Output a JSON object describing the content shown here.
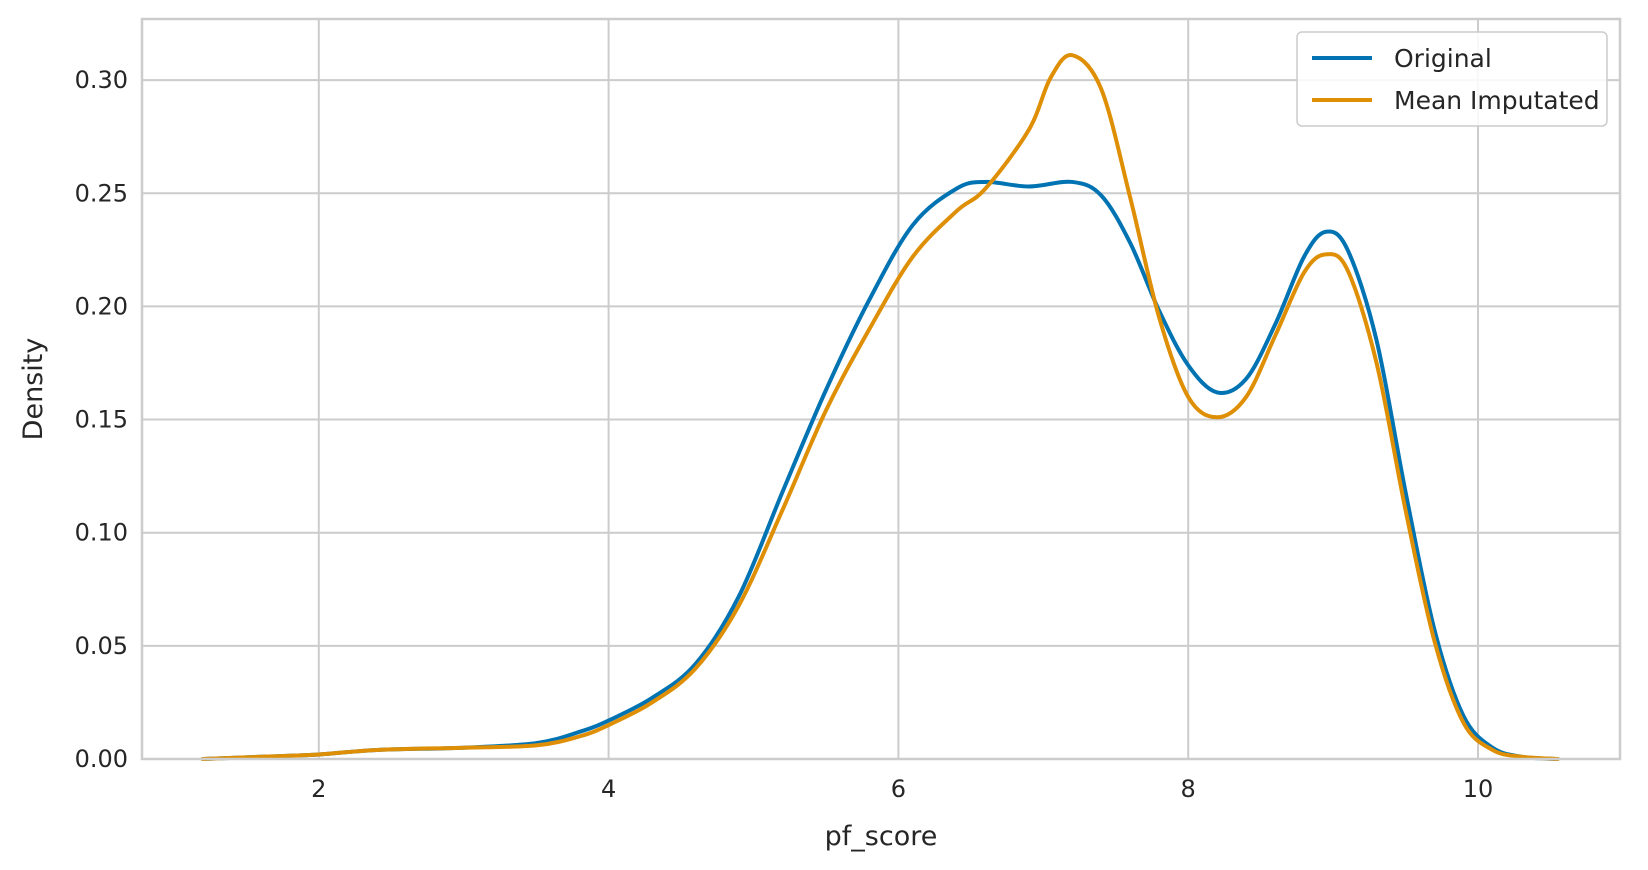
{
  "chart_data": {
    "type": "line",
    "title": "",
    "xlabel": "pf_score",
    "ylabel": "Density",
    "xlim": [
      0.78,
      10.98
    ],
    "ylim": [
      0,
      0.327
    ],
    "x_ticks": [
      2,
      4,
      6,
      8,
      10
    ],
    "x_tick_labels": [
      "2",
      "4",
      "6",
      "8",
      "10"
    ],
    "y_ticks": [
      0,
      0.05,
      0.1,
      0.15,
      0.2,
      0.25,
      0.3
    ],
    "y_tick_labels": [
      "0.00",
      "0.05",
      "0.10",
      "0.15",
      "0.20",
      "0.25",
      "0.30"
    ],
    "grid": true,
    "legend_position": "top-right",
    "series": [
      {
        "name": "Original",
        "color": "#0173b2",
        "x": [
          1.2,
          1.6,
          2.0,
          2.4,
          3.0,
          3.5,
          3.8,
          4.0,
          4.3,
          4.6,
          4.9,
          5.2,
          5.5,
          5.8,
          6.1,
          6.4,
          6.6,
          6.9,
          7.2,
          7.4,
          7.6,
          7.8,
          8.0,
          8.2,
          8.4,
          8.6,
          8.8,
          8.95,
          9.1,
          9.3,
          9.5,
          9.7,
          9.9,
          10.1,
          10.3,
          10.55
        ],
        "values": [
          0.0,
          0.001,
          0.002,
          0.004,
          0.005,
          0.007,
          0.012,
          0.017,
          0.027,
          0.042,
          0.072,
          0.118,
          0.163,
          0.203,
          0.236,
          0.252,
          0.255,
          0.253,
          0.255,
          0.249,
          0.228,
          0.198,
          0.174,
          0.162,
          0.168,
          0.192,
          0.222,
          0.233,
          0.225,
          0.185,
          0.118,
          0.057,
          0.019,
          0.005,
          0.001,
          0.0
        ]
      },
      {
        "name": "Mean Imputated",
        "color": "#de8f05",
        "x": [
          1.2,
          1.6,
          2.0,
          2.4,
          3.0,
          3.5,
          3.8,
          4.0,
          4.3,
          4.6,
          4.9,
          5.2,
          5.5,
          5.8,
          6.1,
          6.4,
          6.6,
          6.9,
          7.05,
          7.2,
          7.4,
          7.6,
          7.8,
          8.0,
          8.2,
          8.4,
          8.6,
          8.8,
          8.95,
          9.1,
          9.3,
          9.5,
          9.7,
          9.9,
          10.1,
          10.3,
          10.55
        ],
        "values": [
          0.0,
          0.001,
          0.002,
          0.004,
          0.005,
          0.006,
          0.01,
          0.015,
          0.025,
          0.04,
          0.068,
          0.11,
          0.154,
          0.19,
          0.222,
          0.242,
          0.252,
          0.278,
          0.301,
          0.311,
          0.296,
          0.248,
          0.195,
          0.16,
          0.151,
          0.16,
          0.187,
          0.215,
          0.223,
          0.216,
          0.175,
          0.11,
          0.052,
          0.016,
          0.004,
          0.001,
          0.0
        ]
      }
    ]
  }
}
